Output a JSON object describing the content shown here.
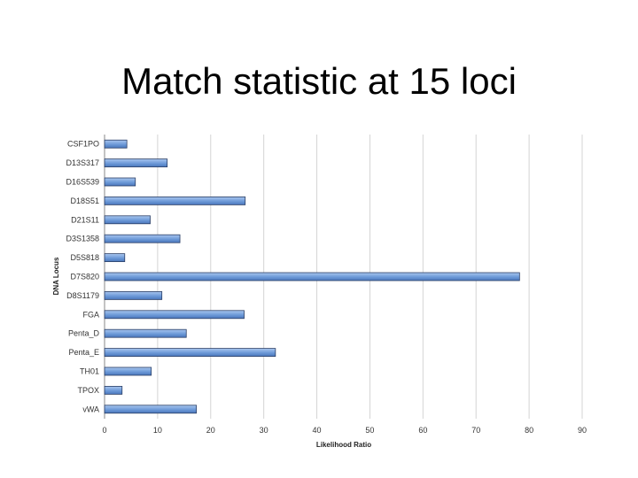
{
  "slide": {
    "title": "Match statistic at 15 loci"
  },
  "chart_data": {
    "type": "bar",
    "orientation": "horizontal",
    "title": "",
    "xlabel": "Likelihood Ratio",
    "ylabel": "DNA Locus",
    "xlim": [
      0,
      90
    ],
    "xticks": [
      0,
      10,
      20,
      30,
      40,
      50,
      60,
      70,
      80,
      90
    ],
    "grid": true,
    "legend": "none",
    "bar_color": "#6d9ad8",
    "bar_edge_color": "#2b3f66",
    "categories": [
      "CSF1PO",
      "D13S317",
      "D16S539",
      "D18S51",
      "D21S11",
      "D3S1358",
      "D5S818",
      "D7S820",
      "D8S1179",
      "FGA",
      "Penta_D",
      "Penta_E",
      "TH01",
      "TPOX",
      "vWA"
    ],
    "values": [
      4.2,
      11.8,
      5.8,
      26.5,
      8.6,
      14.2,
      3.8,
      78.2,
      10.8,
      26.3,
      15.4,
      32.2,
      8.8,
      3.3,
      17.3
    ]
  }
}
